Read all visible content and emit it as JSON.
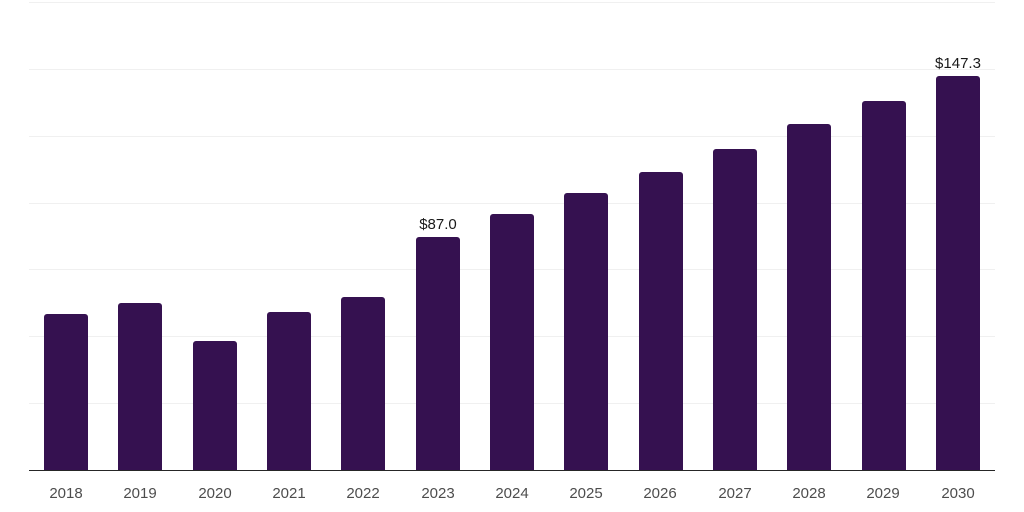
{
  "chart_data": {
    "type": "bar",
    "title": "",
    "xlabel": "",
    "ylabel": "",
    "categories": [
      "2018",
      "2019",
      "2020",
      "2021",
      "2022",
      "2023",
      "2024",
      "2025",
      "2026",
      "2027",
      "2028",
      "2029",
      "2030"
    ],
    "values": [
      58.3,
      62.4,
      48.2,
      59.0,
      64.6,
      87.0,
      95.6,
      103.5,
      111.3,
      120.0,
      129.2,
      137.8,
      147.3
    ],
    "data_labels": [
      "",
      "",
      "",
      "",
      "",
      "$87.0",
      "",
      "",
      "",
      "",
      "",
      "",
      "$147.3"
    ],
    "ylim": [
      0,
      175
    ],
    "grid_interval": 25,
    "grid": "horizontal",
    "legend_position": "none",
    "colors": {
      "bar": "#351150",
      "gridline": "#f0f0f0",
      "axis_line": "#262626",
      "tick_label": "#4d4d4d",
      "data_label": "#1a1a1a",
      "background": "#ffffff"
    }
  }
}
